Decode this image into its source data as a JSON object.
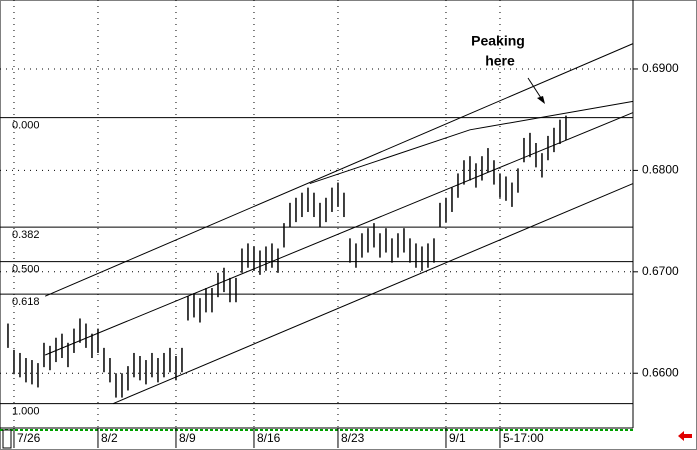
{
  "chart_data": {
    "type": "ohlc",
    "annotation": [
      "Peaking",
      "here"
    ],
    "xlim": [
      -1.33,
      104.17
    ],
    "xticks": [
      {
        "value": 2,
        "label": "7/26"
      },
      {
        "value": 16,
        "label": "8/2"
      },
      {
        "value": 29,
        "label": "8/9"
      },
      {
        "value": 42,
        "label": "8/16"
      },
      {
        "value": 56,
        "label": "8/23"
      },
      {
        "value": 74,
        "label": "9/1"
      },
      {
        "value": 83,
        "label": "5-17:00"
      }
    ],
    "ylim": [
      0.6546,
      0.6968
    ],
    "yticks": [
      {
        "value": 0.66,
        "label": "0.6600"
      },
      {
        "value": 0.67,
        "label": "0.6700"
      },
      {
        "value": 0.68,
        "label": "0.6800"
      },
      {
        "value": 0.69,
        "label": "0.6900"
      }
    ],
    "grid": true,
    "color": "#000000",
    "high": [
      0.6649,
      0.6623,
      0.662,
      0.6615,
      0.6613,
      0.661,
      0.663,
      0.6627,
      0.6635,
      0.6639,
      0.663,
      0.6644,
      0.6654,
      0.6649,
      0.6639,
      0.6644,
      0.6625,
      0.6615,
      0.66,
      0.66,
      0.6607,
      0.662,
      0.6617,
      0.6613,
      0.662,
      0.6615,
      0.662,
      0.6625,
      0.6617,
      0.6625,
      0.6676,
      0.6679,
      0.6674,
      0.6684,
      0.6684,
      0.6699,
      0.6704,
      0.6694,
      0.6694,
      0.6723,
      0.6728,
      0.6725,
      0.6721,
      0.6725,
      0.6728,
      0.6723,
      0.6748,
      0.6768,
      0.6773,
      0.6778,
      0.6783,
      0.6778,
      0.6768,
      0.6773,
      0.6783,
      0.6788,
      0.6778,
      0.6733,
      0.6728,
      0.6738,
      0.6743,
      0.6748,
      0.6738,
      0.6743,
      0.6733,
      0.6738,
      0.6743,
      0.6733,
      0.6728,
      0.6725,
      0.6728,
      0.6733,
      0.6768,
      0.6773,
      0.6783,
      0.6797,
      0.681,
      0.6814,
      0.6807,
      0.6814,
      0.6822,
      0.681,
      0.6797,
      0.6794,
      0.6788,
      0.6802,
      0.6832,
      0.6837,
      0.6827,
      0.6817,
      0.6834,
      0.6842,
      0.685,
      0.6854
    ],
    "low": [
      0.6625,
      0.6599,
      0.6596,
      0.6591,
      0.6589,
      0.6586,
      0.6606,
      0.6603,
      0.6611,
      0.6615,
      0.6606,
      0.662,
      0.663,
      0.6625,
      0.6615,
      0.662,
      0.6601,
      0.6591,
      0.6576,
      0.6576,
      0.6583,
      0.6596,
      0.6593,
      0.6589,
      0.6596,
      0.6591,
      0.6596,
      0.6601,
      0.6593,
      0.6601,
      0.6652,
      0.6655,
      0.665,
      0.666,
      0.666,
      0.6675,
      0.668,
      0.667,
      0.667,
      0.6699,
      0.6704,
      0.6701,
      0.6697,
      0.6701,
      0.6704,
      0.6699,
      0.6724,
      0.6744,
      0.6749,
      0.6754,
      0.6759,
      0.6754,
      0.6744,
      0.6749,
      0.6759,
      0.6764,
      0.6754,
      0.6709,
      0.6704,
      0.6714,
      0.6719,
      0.6724,
      0.6714,
      0.6719,
      0.6709,
      0.6714,
      0.6719,
      0.6709,
      0.6704,
      0.6701,
      0.6704,
      0.6709,
      0.6744,
      0.6749,
      0.6759,
      0.6773,
      0.6786,
      0.679,
      0.6783,
      0.679,
      0.6798,
      0.6786,
      0.6773,
      0.677,
      0.6764,
      0.6778,
      0.6808,
      0.6813,
      0.6803,
      0.6793,
      0.681,
      0.6818,
      0.6826,
      0.683
    ],
    "fib_levels": [
      {
        "label": "0.000",
        "value": 0.6852
      },
      {
        "label": "0.382",
        "value": 0.6744
      },
      {
        "label": "0.500",
        "value": 0.671
      },
      {
        "label": "0.618",
        "value": 0.6678
      },
      {
        "label": "1.000",
        "value": 0.657
      }
    ],
    "trendlines": [
      {
        "x": [
          6.2,
          104.17
        ],
        "y": [
          0.6676,
          0.6925
        ]
      },
      {
        "x": [
          6.2,
          104.17
        ],
        "y": [
          0.6618,
          0.6857
        ]
      },
      {
        "x": [
          17.5,
          104.17
        ],
        "y": [
          0.657,
          0.6787
        ]
      },
      {
        "x": [
          50.3,
          77,
          104.17
        ],
        "y": [
          0.6787,
          0.684,
          0.6868
        ]
      }
    ]
  }
}
